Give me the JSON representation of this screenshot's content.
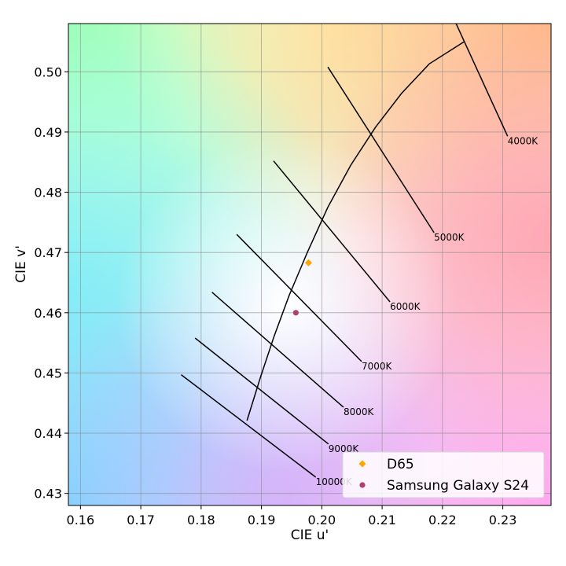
{
  "chart_data": {
    "type": "scatter",
    "title": "",
    "xlabel": "CIE u'",
    "ylabel": "CIE v'",
    "xlim": [
      0.158,
      0.238
    ],
    "ylim": [
      0.428,
      0.508
    ],
    "x_ticks": [
      "0.16",
      "0.17",
      "0.18",
      "0.19",
      "0.20",
      "0.21",
      "0.22",
      "0.23"
    ],
    "y_ticks": [
      "0.43",
      "0.44",
      "0.45",
      "0.46",
      "0.47",
      "0.48",
      "0.49",
      "0.50"
    ],
    "grid": true,
    "background": "CIE chromaticity color gradient",
    "legend_position": "bottom-right",
    "planckian_locus": [
      {
        "u": 0.1876,
        "v": 0.4421
      },
      {
        "u": 0.1898,
        "v": 0.4492
      },
      {
        "u": 0.1921,
        "v": 0.4561
      },
      {
        "u": 0.1946,
        "v": 0.4629
      },
      {
        "u": 0.1976,
        "v": 0.47
      },
      {
        "u": 0.201,
        "v": 0.4775
      },
      {
        "u": 0.2048,
        "v": 0.4845
      },
      {
        "u": 0.2089,
        "v": 0.4908
      },
      {
        "u": 0.2132,
        "v": 0.4964
      },
      {
        "u": 0.2178,
        "v": 0.5013
      },
      {
        "u": 0.2236,
        "v": 0.505
      }
    ],
    "isotherms": [
      {
        "label": "4000K",
        "start": [
          0.2218,
          0.509
        ],
        "end": [
          0.2308,
          0.4893
        ]
      },
      {
        "label": "5000K",
        "start": [
          0.201,
          0.5008
        ],
        "end": [
          0.2186,
          0.4733
        ]
      },
      {
        "label": "6000K",
        "start": [
          0.192,
          0.4852
        ],
        "end": [
          0.2113,
          0.4618
        ]
      },
      {
        "label": "7000K",
        "start": [
          0.1859,
          0.473
        ],
        "end": [
          0.2066,
          0.4519
        ]
      },
      {
        "label": "8000K",
        "start": [
          0.1818,
          0.4634
        ],
        "end": [
          0.2036,
          0.4443
        ]
      },
      {
        "label": "9000K",
        "start": [
          0.179,
          0.4558
        ],
        "end": [
          0.2011,
          0.4382
        ]
      },
      {
        "label": "10000K",
        "start": [
          0.1767,
          0.4497
        ],
        "end": [
          0.199,
          0.4327
        ]
      }
    ],
    "series": [
      {
        "name": "D65",
        "marker": "diamond",
        "color": "#ffa500",
        "points": [
          {
            "u": 0.1978,
            "v": 0.4683
          }
        ]
      },
      {
        "name": "Samsung Galaxy S24",
        "marker": "circle",
        "color": "#b0406a",
        "points": [
          {
            "u": 0.1957,
            "v": 0.46
          }
        ]
      }
    ]
  }
}
